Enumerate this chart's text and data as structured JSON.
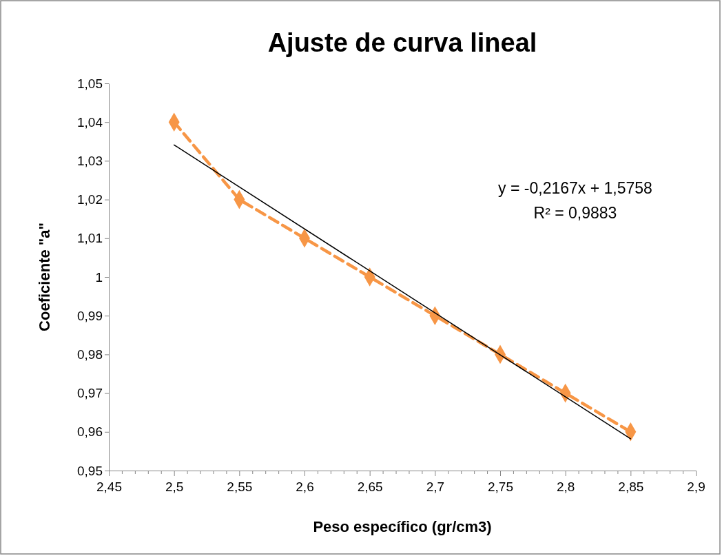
{
  "chart_data": {
    "type": "line",
    "title": "Ajuste de curva lineal",
    "xlabel": "Peso específico (gr/cm3)",
    "ylabel": "Coeficiente \"a\"",
    "x": [
      2.5,
      2.55,
      2.6,
      2.65,
      2.7,
      2.75,
      2.8,
      2.85
    ],
    "series": [
      {
        "color": "#f79646",
        "values": [
          1.04,
          1.02,
          1.01,
          1.0,
          0.99,
          0.98,
          0.97,
          0.96
        ],
        "marker": "diamond",
        "line_style": "dashed"
      },
      {
        "type": "line",
        "color": "#000000",
        "x": [
          2.5,
          2.85
        ],
        "values": [
          1.0341,
          0.9582
        ],
        "marker": "none",
        "line_style": "solid"
      }
    ],
    "xlim": [
      2.45,
      2.9
    ],
    "xticks": [
      {
        "value": 2.45,
        "label": "2,45"
      },
      {
        "value": 2.46,
        "label": null
      },
      {
        "value": 2.47,
        "label": null
      },
      {
        "value": 2.48,
        "label": null
      },
      {
        "value": 2.49,
        "label": null
      },
      {
        "value": 2.5,
        "label": "2,5"
      },
      {
        "value": 2.51,
        "label": null
      },
      {
        "value": 2.52,
        "label": null
      },
      {
        "value": 2.53,
        "label": null
      },
      {
        "value": 2.54,
        "label": null
      },
      {
        "value": 2.55,
        "label": "2,55"
      },
      {
        "value": 2.56,
        "label": null
      },
      {
        "value": 2.57,
        "label": null
      },
      {
        "value": 2.58,
        "label": null
      },
      {
        "value": 2.59,
        "label": null
      },
      {
        "value": 2.6,
        "label": "2,6"
      },
      {
        "value": 2.61,
        "label": null
      },
      {
        "value": 2.62,
        "label": null
      },
      {
        "value": 2.63,
        "label": null
      },
      {
        "value": 2.64,
        "label": null
      },
      {
        "value": 2.65,
        "label": "2,65"
      },
      {
        "value": 2.66,
        "label": null
      },
      {
        "value": 2.67,
        "label": null
      },
      {
        "value": 2.68,
        "label": null
      },
      {
        "value": 2.69,
        "label": null
      },
      {
        "value": 2.7,
        "label": "2,7"
      },
      {
        "value": 2.71,
        "label": null
      },
      {
        "value": 2.72,
        "label": null
      },
      {
        "value": 2.73,
        "label": null
      },
      {
        "value": 2.74,
        "label": null
      },
      {
        "value": 2.75,
        "label": "2,75"
      },
      {
        "value": 2.76,
        "label": null
      },
      {
        "value": 2.77,
        "label": null
      },
      {
        "value": 2.78,
        "label": null
      },
      {
        "value": 2.79,
        "label": null
      },
      {
        "value": 2.8,
        "label": "2,8"
      },
      {
        "value": 2.81,
        "label": null
      },
      {
        "value": 2.82,
        "label": null
      },
      {
        "value": 2.83,
        "label": null
      },
      {
        "value": 2.84,
        "label": null
      },
      {
        "value": 2.85,
        "label": "2,85"
      },
      {
        "value": 2.86,
        "label": null
      },
      {
        "value": 2.87,
        "label": null
      },
      {
        "value": 2.88,
        "label": null
      },
      {
        "value": 2.89,
        "label": null
      },
      {
        "value": 2.9,
        "label": "2,9"
      }
    ],
    "ylim": [
      0.95,
      1.05
    ],
    "yticks": [
      {
        "value": 0.95,
        "label": "0,95"
      },
      {
        "value": 0.96,
        "label": "0,96"
      },
      {
        "value": 0.97,
        "label": "0,97"
      },
      {
        "value": 0.98,
        "label": "0,98"
      },
      {
        "value": 0.99,
        "label": "0,99"
      },
      1,
      {
        "value": 1.01,
        "label": "1,01"
      },
      {
        "value": 1.02,
        "label": "1,02"
      },
      {
        "value": 1.03,
        "label": "1,03"
      },
      {
        "value": 1.04,
        "label": "1,04"
      },
      {
        "value": 1.05,
        "label": "1,05"
      }
    ],
    "annotations": [
      "y = -0,2167x + 1,5758",
      "R² = 0,9883"
    ],
    "grid": false
  }
}
